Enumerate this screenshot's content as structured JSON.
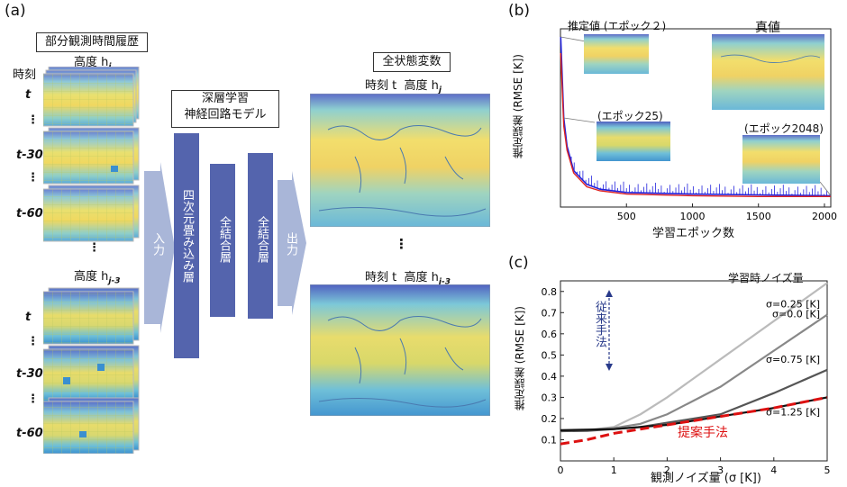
{
  "panel_a": {
    "label": "(a)",
    "history_title": "部分観測時間履歴",
    "height_j": "高度 h",
    "height_j_sub": "j",
    "height_j3": "高度 h",
    "height_j3_sub": "j-3",
    "time_label": "時刻",
    "t": "t",
    "t30": "t-30τ",
    "t60": "t-60τ",
    "vdots": "⋮",
    "input": "入力",
    "output": "出力",
    "model_title_1": "深層学習",
    "model_title_2": "神経回路モデル",
    "layer_conv": "四次元畳み込み層",
    "layer_fc": "全結合層",
    "state_title": "全状態変数",
    "time_t": "時刻 t",
    "out_height_j": "高度 h",
    "out_height_j3": "高度 h"
  },
  "panel_b": {
    "label": "(b)",
    "ylabel": "推定誤差 (RMSE [K])",
    "xlabel": "学習エポック数",
    "inset_epoch2": "推定値 (エポック２)",
    "inset_epoch25": "(エポック25)",
    "inset_epoch2048": "(エポック2048)",
    "true_value": "真値",
    "colors": {
      "train": "#2222dd",
      "valid": "#dd2222"
    }
  },
  "panel_c": {
    "label": "(c)",
    "ylabel": "推定誤差 (RMSE [K])",
    "xlabel": "観測ノイズ量 (σ [K])",
    "legend_title": "学習時ノイズ量",
    "conventional": "従来手法",
    "proposed": "提案手法"
  },
  "chart_data": [
    {
      "type": "line",
      "title": "",
      "xlabel": "学習エポック数",
      "ylabel": "推定誤差 (RMSE [K])",
      "xlim": [
        0,
        2048
      ],
      "xticks": [
        500,
        1000,
        1500,
        2000
      ],
      "series": [
        {
          "x": [
            2,
            25,
            50,
            100,
            200,
            300,
            500,
            1000,
            1500,
            2048
          ],
          "values": [
            2.1,
            1.1,
            0.75,
            0.45,
            0.28,
            0.22,
            0.18,
            0.16,
            0.15,
            0.14
          ]
        },
        {
          "x": [
            2,
            25,
            50,
            100,
            200,
            300,
            500,
            1000,
            1500,
            2048
          ],
          "values": [
            1.9,
            1.0,
            0.7,
            0.42,
            0.25,
            0.2,
            0.16,
            0.14,
            0.13,
            0.13
          ]
        }
      ]
    },
    {
      "type": "line",
      "title": "",
      "xlabel": "観測ノイズ量 (σ [K])",
      "ylabel": "推定誤差 (RMSE [K])",
      "xlim": [
        0,
        5
      ],
      "ylim": [
        0,
        0.85
      ],
      "xticks": [
        0,
        1,
        2,
        3,
        4,
        5
      ],
      "yticks": [
        0.1,
        0.2,
        0.3,
        0.4,
        0.5,
        0.6,
        0.7,
        0.8
      ],
      "series": [
        {
          "name": "σ=0.0 [K]",
          "color": "#bbbbbb",
          "x": [
            0,
            0.5,
            1,
            1.5,
            2,
            3,
            4,
            5
          ],
          "values": [
            0.14,
            0.145,
            0.16,
            0.22,
            0.3,
            0.48,
            0.66,
            0.84
          ]
        },
        {
          "name": "σ=0.25 [K]",
          "color": "#888888",
          "x": [
            0,
            0.5,
            1,
            1.5,
            2,
            3,
            4,
            5
          ],
          "values": [
            0.14,
            0.145,
            0.155,
            0.175,
            0.22,
            0.35,
            0.52,
            0.69
          ]
        },
        {
          "name": "σ=0.75 [K]",
          "color": "#555555",
          "x": [
            0,
            0.5,
            1,
            1.5,
            2,
            3,
            4,
            5
          ],
          "values": [
            0.14,
            0.142,
            0.15,
            0.16,
            0.18,
            0.22,
            0.32,
            0.43
          ]
        },
        {
          "name": "σ=1.25 [K]",
          "color": "#111111",
          "x": [
            0,
            1,
            2,
            3,
            4,
            5
          ],
          "values": [
            0.145,
            0.15,
            0.17,
            0.21,
            0.25,
            0.3
          ]
        },
        {
          "name": "提案手法",
          "color": "#dd1111",
          "dashed": true,
          "x": [
            0,
            0.5,
            1,
            2,
            3,
            4,
            5
          ],
          "values": [
            0.08,
            0.1,
            0.13,
            0.17,
            0.21,
            0.25,
            0.3
          ]
        }
      ]
    }
  ]
}
